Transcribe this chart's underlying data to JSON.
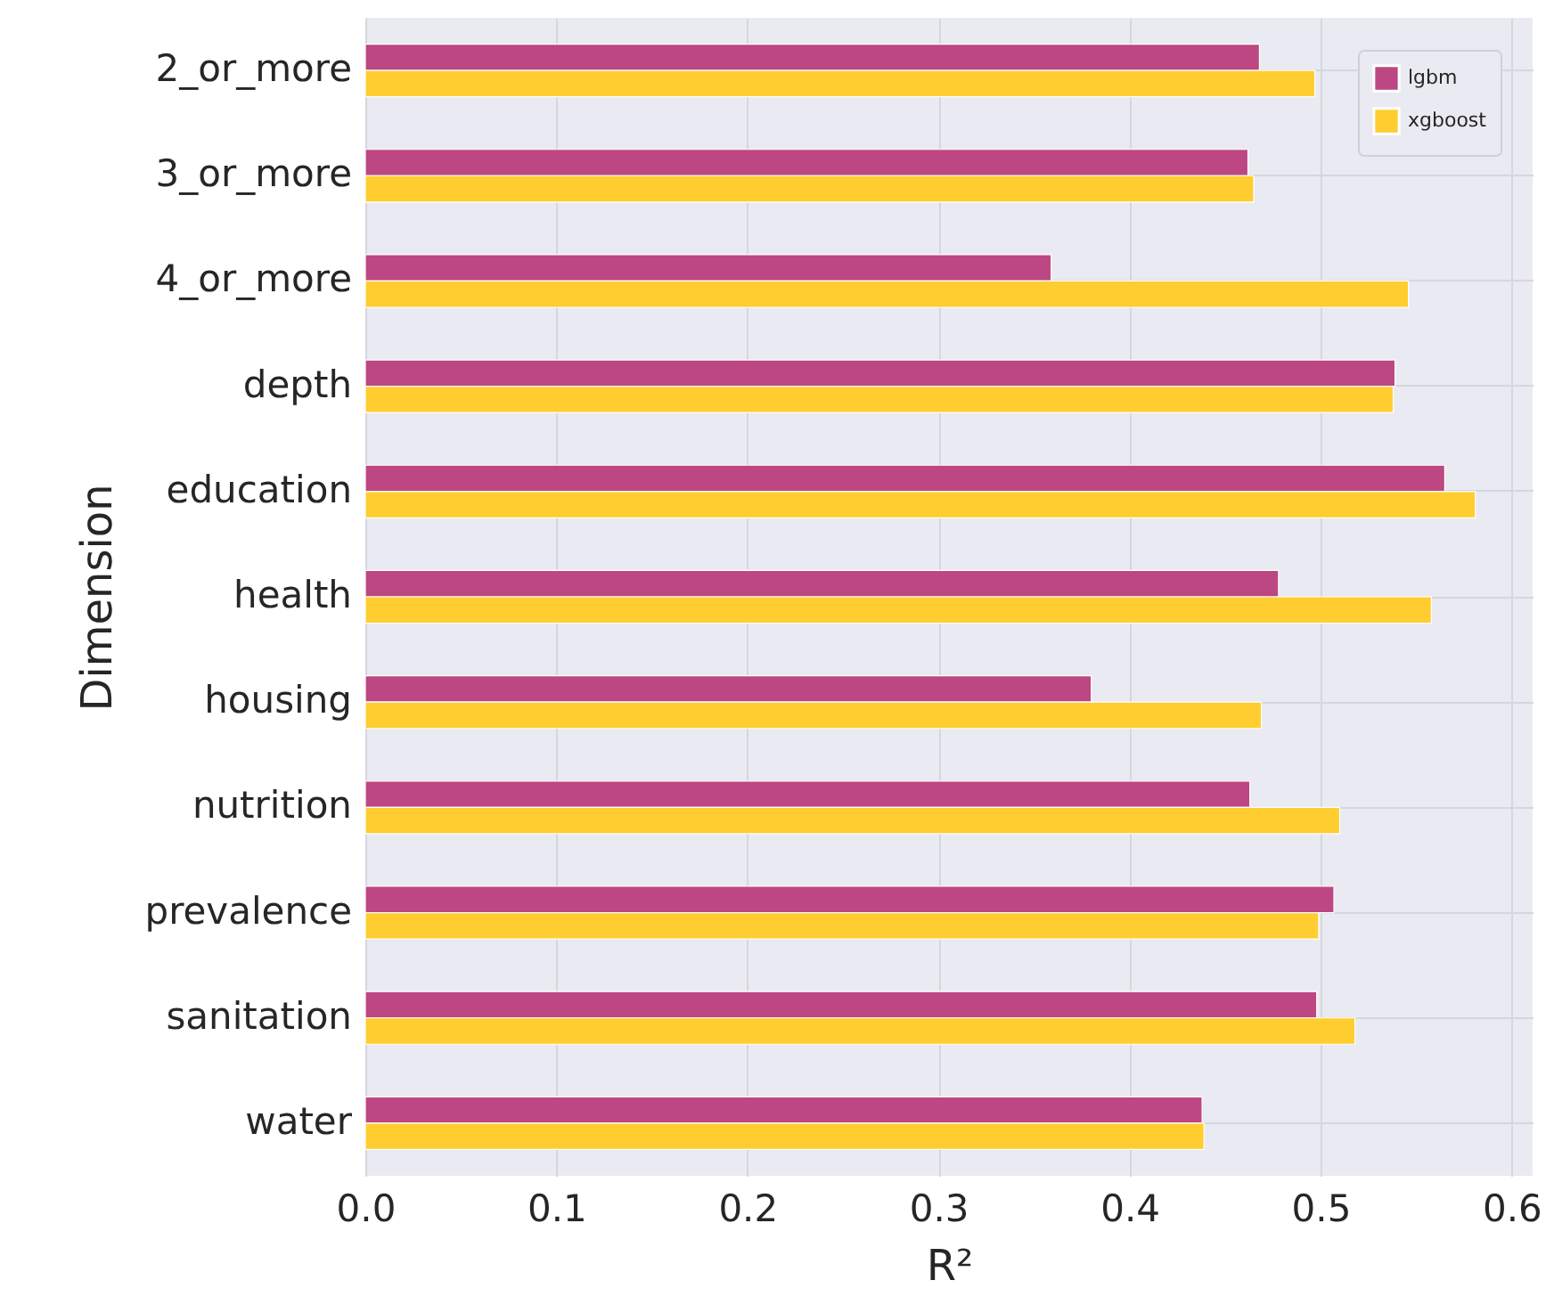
{
  "chart_data": {
    "type": "bar",
    "orientation": "horizontal",
    "xlabel": "R²",
    "ylabel": "Dimension",
    "categories": [
      "2_or_more",
      "3_or_more",
      "4_or_more",
      "depth",
      "education",
      "health",
      "housing",
      "nutrition",
      "prevalence",
      "sanitation",
      "water"
    ],
    "series": [
      {
        "name": "lgbm",
        "color": "#bd4782",
        "values": [
          0.468,
          0.462,
          0.359,
          0.539,
          0.565,
          0.478,
          0.38,
          0.463,
          0.507,
          0.498,
          0.438
        ]
      },
      {
        "name": "xgboost",
        "color": "#ffcd2f",
        "values": [
          0.497,
          0.465,
          0.546,
          0.538,
          0.581,
          0.558,
          0.469,
          0.51,
          0.499,
          0.518,
          0.439
        ]
      }
    ],
    "xlim": [
      0,
      0.611
    ],
    "xticks": [
      {
        "value": 0,
        "label": "0.0"
      },
      {
        "value": 0.1,
        "label": "0.1"
      },
      {
        "value": 0.2,
        "label": "0.2"
      },
      {
        "value": 0.3,
        "label": "0.3"
      },
      {
        "value": 0.4,
        "label": "0.4"
      },
      {
        "value": 0.5,
        "label": "0.5"
      },
      {
        "value": 0.6,
        "label": "0.6"
      }
    ],
    "grid": true,
    "legend": "top right"
  }
}
